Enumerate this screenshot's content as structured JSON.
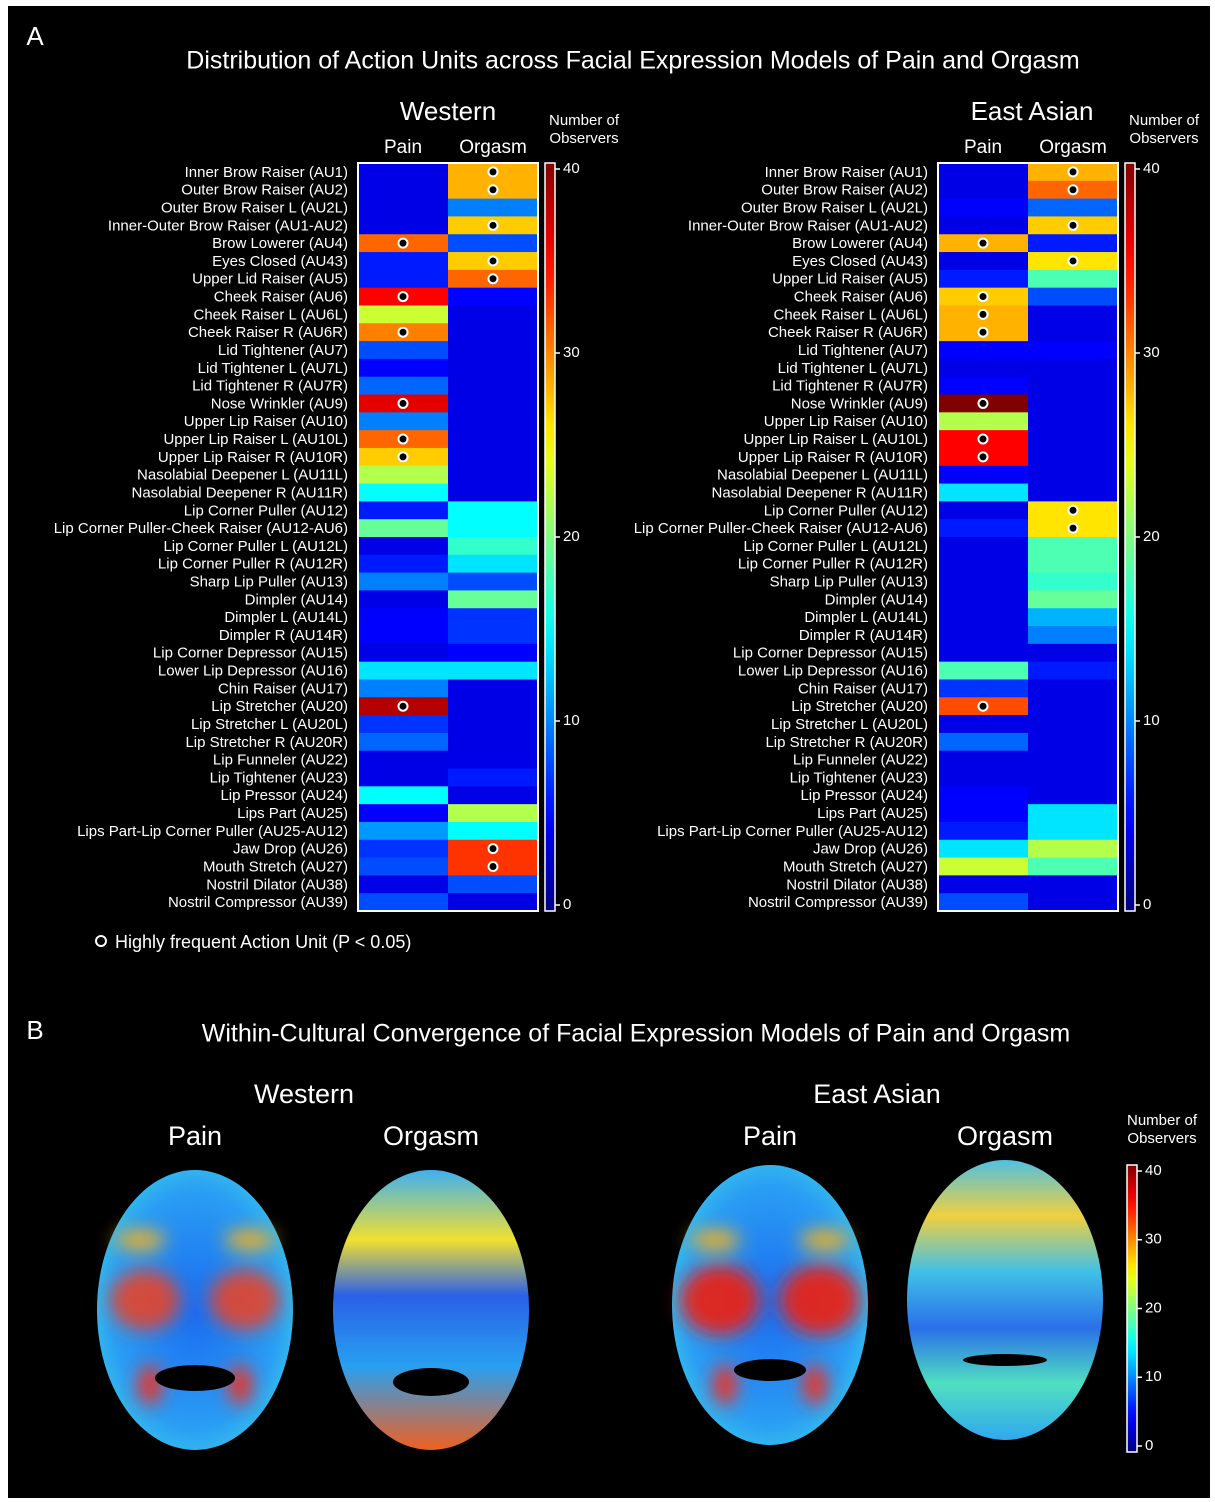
{
  "panel_a": {
    "label": "A",
    "title": "Distribution of Action Units across Facial Expression Models of Pain and Orgasm",
    "legend": "Highly frequent Action Unit (P < 0.05)"
  },
  "chart_data": [
    {
      "type": "heatmap",
      "title": "Western",
      "columns": [
        "Pain",
        "Orgasm"
      ],
      "rows": [
        "Inner Brow Raiser (AU1)",
        "Outer Brow Raiser (AU2)",
        "Outer Brow Raiser L (AU2L)",
        "Inner-Outer Brow Raiser (AU1-AU2)",
        "Brow Lowerer (AU4)",
        "Eyes Closed (AU43)",
        "Upper Lid Raiser (AU5)",
        "Cheek Raiser (AU6)",
        "Cheek Raiser L (AU6L)",
        "Cheek Raiser R (AU6R)",
        "Lid Tightener (AU7)",
        "Lid Tightener L (AU7L)",
        "Lid Tightener R (AU7R)",
        "Nose Wrinkler (AU9)",
        "Upper Lip Raiser (AU10)",
        "Upper Lip Raiser L (AU10L)",
        "Upper Lip Raiser R (AU10R)",
        "Nasolabial Deepener L (AU11L)",
        "Nasolabial Deepener R (AU11R)",
        "Lip Corner Puller (AU12)",
        "Lip Corner Puller-Cheek Raiser (AU12-AU6)",
        "Lip Corner Puller L (AU12L)",
        "Lip Corner Puller R (AU12R)",
        "Sharp Lip Puller (AU13)",
        "Dimpler (AU14)",
        "Dimpler L (AU14L)",
        "Dimpler R (AU14R)",
        "Lip Corner Depressor (AU15)",
        "Lower Lip Depressor (AU16)",
        "Chin Raiser (AU17)",
        "Lip Stretcher (AU20)",
        "Lip Stretcher L (AU20L)",
        "Lip Stretcher R (AU20R)",
        "Lip Funneler (AU22)",
        "Lip Tightener (AU23)",
        "Lip Pressor (AU24)",
        "Lips Part (AU25)",
        "Lips Part-Lip Corner Puller (AU25-AU12)",
        "Jaw Drop (AU26)",
        "Mouth Stretch (AU27)",
        "Nostril Dilator (AU38)",
        "Nostril Compressor (AU39)"
      ],
      "values": [
        [
          4,
          28
        ],
        [
          4,
          28
        ],
        [
          4,
          10
        ],
        [
          4,
          27
        ],
        [
          31,
          8
        ],
        [
          6,
          27
        ],
        [
          6,
          31
        ],
        [
          35,
          5
        ],
        [
          23,
          4
        ],
        [
          30,
          4
        ],
        [
          8,
          4
        ],
        [
          5,
          4
        ],
        [
          9,
          4
        ],
        [
          36,
          4
        ],
        [
          10,
          4
        ],
        [
          31,
          4
        ],
        [
          27,
          4
        ],
        [
          22,
          4
        ],
        [
          15,
          4
        ],
        [
          6,
          15
        ],
        [
          19,
          15
        ],
        [
          4,
          17
        ],
        [
          6,
          14
        ],
        [
          10,
          8
        ],
        [
          4,
          19
        ],
        [
          5,
          7
        ],
        [
          5,
          7
        ],
        [
          4,
          5
        ],
        [
          14,
          14
        ],
        [
          10,
          4
        ],
        [
          38,
          4
        ],
        [
          7,
          4
        ],
        [
          9,
          4
        ],
        [
          4,
          4
        ],
        [
          4,
          6
        ],
        [
          15,
          4
        ],
        [
          5,
          22
        ],
        [
          11,
          15
        ],
        [
          7,
          33
        ],
        [
          8,
          33
        ],
        [
          4,
          8
        ],
        [
          8,
          4
        ]
      ],
      "significant": [
        [
          false,
          true
        ],
        [
          false,
          true
        ],
        [
          false,
          false
        ],
        [
          false,
          true
        ],
        [
          true,
          false
        ],
        [
          false,
          true
        ],
        [
          false,
          true
        ],
        [
          true,
          false
        ],
        [
          false,
          false
        ],
        [
          true,
          false
        ],
        [
          false,
          false
        ],
        [
          false,
          false
        ],
        [
          false,
          false
        ],
        [
          true,
          false
        ],
        [
          false,
          false
        ],
        [
          true,
          false
        ],
        [
          true,
          false
        ],
        [
          false,
          false
        ],
        [
          false,
          false
        ],
        [
          false,
          false
        ],
        [
          false,
          false
        ],
        [
          false,
          false
        ],
        [
          false,
          false
        ],
        [
          false,
          false
        ],
        [
          false,
          false
        ],
        [
          false,
          false
        ],
        [
          false,
          false
        ],
        [
          false,
          false
        ],
        [
          false,
          false
        ],
        [
          false,
          false
        ],
        [
          true,
          false
        ],
        [
          false,
          false
        ],
        [
          false,
          false
        ],
        [
          false,
          false
        ],
        [
          false,
          false
        ],
        [
          false,
          false
        ],
        [
          false,
          false
        ],
        [
          false,
          false
        ],
        [
          false,
          true
        ],
        [
          false,
          true
        ],
        [
          false,
          false
        ],
        [
          false,
          false
        ]
      ],
      "colormap": "jet",
      "colorbar": {
        "label": "Number of Observers",
        "lim": [
          0,
          40
        ],
        "ticks": [
          0,
          10,
          20,
          30,
          40
        ]
      }
    },
    {
      "type": "heatmap",
      "title": "East Asian",
      "columns": [
        "Pain",
        "Orgasm"
      ],
      "rows": [
        "Inner Brow Raiser (AU1)",
        "Outer Brow Raiser (AU2)",
        "Outer Brow Raiser L (AU2L)",
        "Inner-Outer Brow Raiser (AU1-AU2)",
        "Brow Lowerer (AU4)",
        "Eyes Closed (AU43)",
        "Upper Lid Raiser (AU5)",
        "Cheek Raiser (AU6)",
        "Cheek Raiser L (AU6L)",
        "Cheek Raiser R (AU6R)",
        "Lid Tightener (AU7)",
        "Lid Tightener L (AU7L)",
        "Lid Tightener R (AU7R)",
        "Nose Wrinkler (AU9)",
        "Upper Lip Raiser (AU10)",
        "Upper Lip Raiser L (AU10L)",
        "Upper Lip Raiser R (AU10R)",
        "Nasolabial Deepener L (AU11L)",
        "Nasolabial Deepener R (AU11R)",
        "Lip Corner Puller (AU12)",
        "Lip Corner Puller-Cheek Raiser (AU12-AU6)",
        "Lip Corner Puller L (AU12L)",
        "Lip Corner Puller R (AU12R)",
        "Sharp Lip Puller (AU13)",
        "Dimpler (AU14)",
        "Dimpler L (AU14L)",
        "Dimpler R (AU14R)",
        "Lip Corner Depressor (AU15)",
        "Lower Lip Depressor (AU16)",
        "Chin Raiser (AU17)",
        "Lip Stretcher (AU20)",
        "Lip Stretcher L (AU20L)",
        "Lip Stretcher R (AU20R)",
        "Lip Funneler (AU22)",
        "Lip Tightener (AU23)",
        "Lip Pressor (AU24)",
        "Lips Part (AU25)",
        "Lips Part-Lip Corner Puller (AU25-AU12)",
        "Jaw Drop (AU26)",
        "Mouth Stretch (AU27)",
        "Nostril Dilator (AU38)",
        "Nostril Compressor (AU39)"
      ],
      "values": [
        [
          4,
          28
        ],
        [
          4,
          31
        ],
        [
          5,
          9
        ],
        [
          4,
          27
        ],
        [
          28,
          6
        ],
        [
          4,
          26
        ],
        [
          6,
          18
        ],
        [
          27,
          8
        ],
        [
          28,
          4
        ],
        [
          28,
          4
        ],
        [
          5,
          5
        ],
        [
          4,
          4
        ],
        [
          5,
          4
        ],
        [
          40,
          4
        ],
        [
          22,
          4
        ],
        [
          35,
          4
        ],
        [
          35,
          4
        ],
        [
          5,
          4
        ],
        [
          14,
          4
        ],
        [
          4,
          26
        ],
        [
          6,
          26
        ],
        [
          4,
          18
        ],
        [
          4,
          18
        ],
        [
          4,
          17
        ],
        [
          4,
          19
        ],
        [
          4,
          12
        ],
        [
          4,
          10
        ],
        [
          4,
          4
        ],
        [
          18,
          6
        ],
        [
          7,
          4
        ],
        [
          32,
          4
        ],
        [
          4,
          4
        ],
        [
          9,
          4
        ],
        [
          4,
          4
        ],
        [
          4,
          4
        ],
        [
          5,
          4
        ],
        [
          5,
          14
        ],
        [
          6,
          14
        ],
        [
          14,
          22
        ],
        [
          23,
          18
        ],
        [
          4,
          4
        ],
        [
          8,
          4
        ]
      ],
      "significant": [
        [
          false,
          true
        ],
        [
          false,
          true
        ],
        [
          false,
          false
        ],
        [
          false,
          true
        ],
        [
          true,
          false
        ],
        [
          false,
          true
        ],
        [
          false,
          false
        ],
        [
          true,
          false
        ],
        [
          true,
          false
        ],
        [
          true,
          false
        ],
        [
          false,
          false
        ],
        [
          false,
          false
        ],
        [
          false,
          false
        ],
        [
          true,
          false
        ],
        [
          false,
          false
        ],
        [
          true,
          false
        ],
        [
          true,
          false
        ],
        [
          false,
          false
        ],
        [
          false,
          false
        ],
        [
          false,
          true
        ],
        [
          false,
          true
        ],
        [
          false,
          false
        ],
        [
          false,
          false
        ],
        [
          false,
          false
        ],
        [
          false,
          false
        ],
        [
          false,
          false
        ],
        [
          false,
          false
        ],
        [
          false,
          false
        ],
        [
          false,
          false
        ],
        [
          false,
          false
        ],
        [
          true,
          false
        ],
        [
          false,
          false
        ],
        [
          false,
          false
        ],
        [
          false,
          false
        ],
        [
          false,
          false
        ],
        [
          false,
          false
        ],
        [
          false,
          false
        ],
        [
          false,
          false
        ],
        [
          false,
          false
        ],
        [
          false,
          false
        ],
        [
          false,
          false
        ],
        [
          false,
          false
        ]
      ],
      "colormap": "jet",
      "colorbar": {
        "label": "Number of Observers",
        "lim": [
          0,
          40
        ],
        "ticks": [
          0,
          10,
          20,
          30,
          40
        ]
      }
    }
  ],
  "panel_b": {
    "label": "B",
    "title": "Within-Cultural Convergence of Facial Expression Models of Pain and Orgasm",
    "groups": [
      {
        "name": "Western",
        "columns": [
          "Pain",
          "Orgasm"
        ]
      },
      {
        "name": "East Asian",
        "columns": [
          "Pain",
          "Orgasm"
        ]
      }
    ],
    "colormap": "jet",
    "colorbar": {
      "label": "Number of Observers",
      "lim": [
        0,
        40
      ],
      "ticks": [
        0,
        10,
        20,
        30,
        40
      ]
    }
  }
}
